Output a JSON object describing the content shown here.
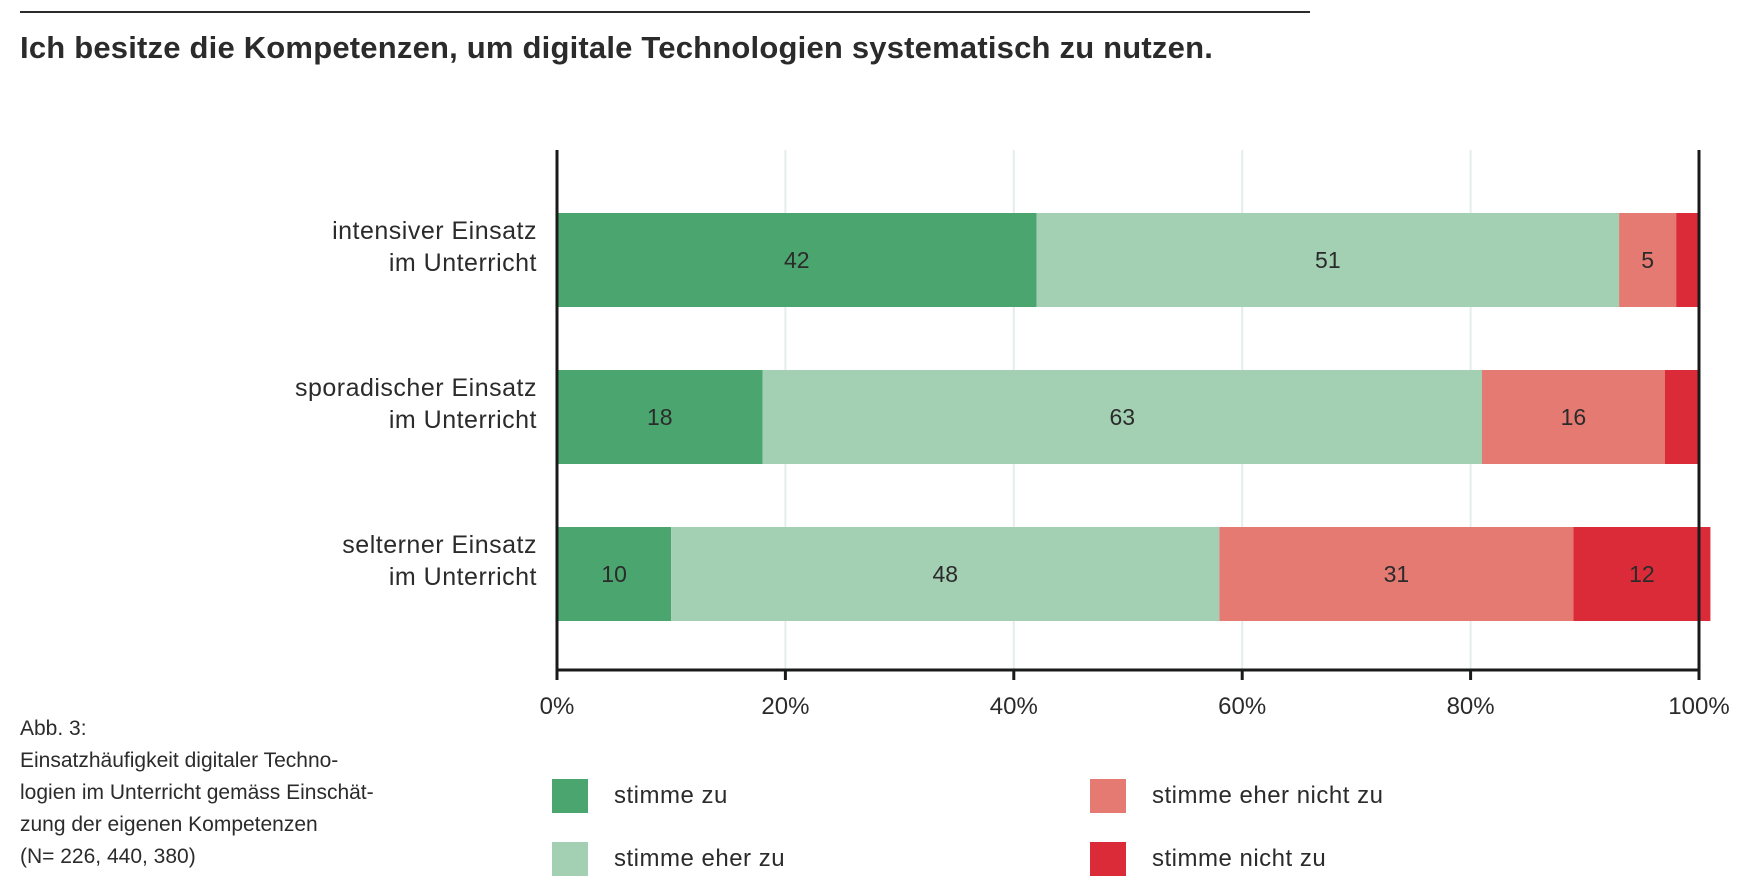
{
  "title": "Ich besitze die Kompetenzen, um digitale Technologien systematisch zu nutzen.",
  "caption": {
    "lines": [
      "Abb. 3:",
      "Einsatzhäufigkeit digitaler Techno-",
      "logien im Unterricht gemäss Einschät-",
      "zung der eigenen Kompetenzen",
      "(N= 226, 440, 380)"
    ]
  },
  "colors": {
    "stimme_zu": "#4ba56f",
    "stimme_eher_zu": "#a3cfb3",
    "stimme_eher_nicht_zu": "#e57a72",
    "stimme_nicht_zu": "#db2b38",
    "gridline": "#e3eeeb",
    "axis": "#1a1a1a"
  },
  "chart_data": {
    "type": "bar",
    "orientation": "horizontal",
    "stacked": true,
    "title": "Ich besitze die Kompetenzen, um digitale Technologien systematisch zu nutzen.",
    "xlabel": "",
    "ylabel": "",
    "xlim": [
      0,
      100
    ],
    "x_ticks": [
      "0%",
      "20%",
      "40%",
      "60%",
      "80%",
      "100%"
    ],
    "x_tick_values": [
      0,
      20,
      40,
      60,
      80,
      100
    ],
    "grid": true,
    "legend_position": "bottom",
    "categories": [
      [
        "intensiver Einsatz",
        "im Unterricht"
      ],
      [
        "sporadischer Einsatz",
        "im Unterricht"
      ],
      [
        "selterner Einsatz",
        "im Unterricht"
      ]
    ],
    "series": [
      {
        "name": "stimme zu",
        "color_key": "stimme_zu",
        "values": [
          42,
          18,
          10
        ],
        "labels": [
          "42",
          "18",
          "10"
        ]
      },
      {
        "name": "stimme eher zu",
        "color_key": "stimme_eher_zu",
        "values": [
          51,
          63,
          48
        ],
        "labels": [
          "51",
          "63",
          "48"
        ]
      },
      {
        "name": "stimme eher nicht zu",
        "color_key": "stimme_eher_nicht_zu",
        "values": [
          5,
          16,
          31
        ],
        "labels": [
          "5",
          "16",
          "31"
        ]
      },
      {
        "name": "stimme nicht zu",
        "color_key": "stimme_nicht_zu",
        "values": [
          2,
          3,
          12
        ],
        "labels": [
          "",
          "",
          "12"
        ]
      }
    ]
  }
}
